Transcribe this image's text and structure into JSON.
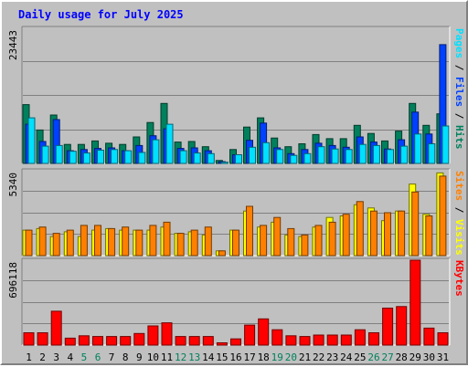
{
  "chart_data": {
    "type": "bar",
    "title": "Daily usage for July 2025",
    "categories": [
      "1",
      "2",
      "3",
      "4",
      "5",
      "6",
      "7",
      "8",
      "9",
      "10",
      "11",
      "12",
      "13",
      "14",
      "15",
      "16",
      "17",
      "18",
      "19",
      "20",
      "21",
      "22",
      "23",
      "24",
      "25",
      "26",
      "27",
      "28",
      "29",
      "30",
      "31"
    ],
    "weekend_days": [
      "5",
      "6",
      "12",
      "13",
      "19",
      "20",
      "26",
      "27"
    ],
    "colors": {
      "hits": "#00805c",
      "files": "#0040ff",
      "pages": "#00e0ff",
      "visits": "#ffff00",
      "sites": "#ff8000",
      "kbytes": "#ff0000",
      "weekday_label": "#000000",
      "weekend_label": "#00805c",
      "title": "#0000ff",
      "panel_bg": "#c0c0c0",
      "grid": "#808080"
    },
    "panels": [
      {
        "id": "hits",
        "max_label": "23443",
        "ymax": 23443,
        "axis_label_parts": [
          {
            "text": "Pages",
            "color": "#00e0ff"
          },
          {
            "text": " / ",
            "color": "#000000"
          },
          {
            "text": "Files",
            "color": "#0040ff"
          },
          {
            "text": " / ",
            "color": "#000000"
          },
          {
            "text": "Hits",
            "color": "#00805c"
          }
        ],
        "series": [
          {
            "name": "Hits",
            "color": "#00805c",
            "values": [
              10200,
              5800,
              8400,
              3300,
              3300,
              3900,
              3500,
              3300,
              4600,
              7100,
              10400,
              3700,
              3800,
              2900,
              500,
              2400,
              6300,
              7900,
              4400,
              2900,
              3400,
              5000,
              4300,
              4300,
              6600,
              5200,
              3900,
              5600,
              10400,
              6600,
              8600
            ]
          },
          {
            "name": "Files",
            "color": "#0040ff",
            "values": [
              6800,
              3800,
              7600,
              2200,
              2400,
              2600,
              2700,
              2200,
              3100,
              4800,
              6000,
              2600,
              2700,
              2200,
              300,
              1500,
              4000,
              7000,
              2700,
              1700,
              2400,
              3500,
              3100,
              2800,
              4600,
              3700,
              2500,
              4100,
              8900,
              5100,
              20600
            ]
          },
          {
            "name": "Pages",
            "color": "#00e0ff",
            "values": [
              7900,
              3000,
              3100,
              2100,
              1800,
              2300,
              2400,
              2200,
              1900,
              4100,
              6800,
              2200,
              1800,
              1700,
              200,
              1500,
              2800,
              3600,
              2400,
              1400,
              1700,
              2900,
              2500,
              2400,
              3300,
              3100,
              2400,
              3000,
              5100,
              3400,
              6500
            ]
          }
        ]
      },
      {
        "id": "visits",
        "max_label": "5340",
        "ymax": 5340,
        "axis_label_parts": [
          {
            "text": "Sites",
            "color": "#ff8000"
          },
          {
            "text": " / ",
            "color": "#000000"
          },
          {
            "text": "Visits",
            "color": "#ffff00"
          }
        ],
        "series": [
          {
            "name": "Visits",
            "color": "#ffff00",
            "values": [
              1600,
              1700,
              1200,
              1500,
              1200,
              1600,
              1700,
              1600,
              1600,
              1600,
              1800,
              1400,
              1500,
              1300,
              300,
              1600,
              2800,
              1800,
              2100,
              1300,
              1200,
              1800,
              2400,
              2500,
              3200,
              3000,
              2200,
              2800,
              4500,
              2600,
              5200
            ]
          },
          {
            "name": "Sites",
            "color": "#ff8000",
            "values": [
              1600,
              1800,
              1400,
              1600,
              1900,
              1900,
              1700,
              1800,
              1600,
              1900,
              2100,
              1400,
              1600,
              1800,
              300,
              1600,
              3100,
              1900,
              2400,
              1700,
              1300,
              1900,
              2100,
              2600,
              3400,
              2800,
              2700,
              2800,
              4000,
              2500,
              5000
            ]
          }
        ]
      },
      {
        "id": "kbytes",
        "max_label": "696118",
        "ymax": 696118,
        "axis_label_parts": [
          {
            "text": "KBytes",
            "color": "#ff0000"
          }
        ],
        "series": [
          {
            "name": "KBytes",
            "color": "#ff0000",
            "values": [
              101000,
              101000,
              278000,
              57000,
              76000,
              70000,
              70000,
              70000,
              95000,
              157000,
              183000,
              70000,
              70000,
              70000,
              19000,
              51000,
              164000,
              215000,
              126000,
              76000,
              70000,
              82000,
              82000,
              82000,
              126000,
              101000,
              303000,
              316000,
              696118,
              139000,
              101000
            ]
          }
        ]
      }
    ]
  }
}
